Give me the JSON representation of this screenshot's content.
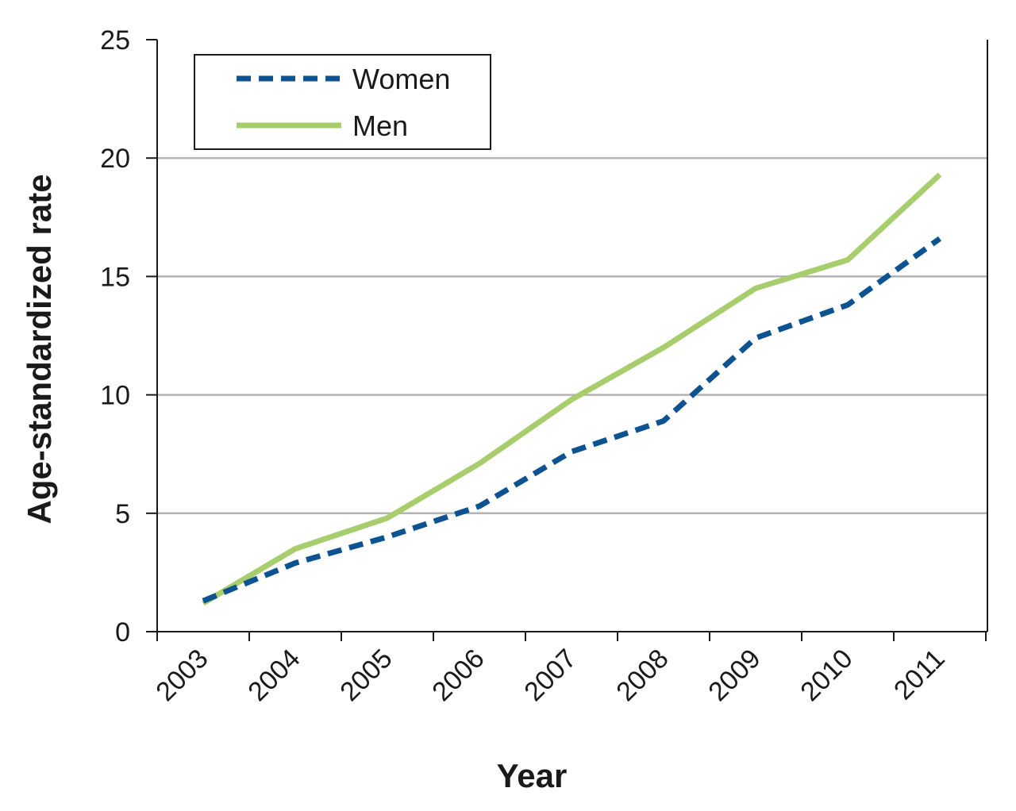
{
  "chart_data": {
    "type": "line",
    "title": "",
    "xlabel": "Year",
    "ylabel": "Age-standardized rate",
    "categories": [
      "2003",
      "2004",
      "2005",
      "2006",
      "2007",
      "2008",
      "2009",
      "2010",
      "2011"
    ],
    "ylim": [
      0,
      25
    ],
    "yticks": [
      "0",
      "5",
      "10",
      "15",
      "20",
      "25"
    ],
    "grid": "horizontal",
    "legend_position": "top-left",
    "series": [
      {
        "name": "Women",
        "values": [
          1.3,
          2.9,
          4.0,
          5.3,
          7.6,
          8.9,
          12.4,
          13.8,
          16.6
        ],
        "color": "#0d5291",
        "style": "dashed"
      },
      {
        "name": "Men",
        "values": [
          1.2,
          3.5,
          4.8,
          7.1,
          9.8,
          12.0,
          14.5,
          15.7,
          19.3
        ],
        "color": "#a8cd6c",
        "style": "solid"
      }
    ]
  }
}
